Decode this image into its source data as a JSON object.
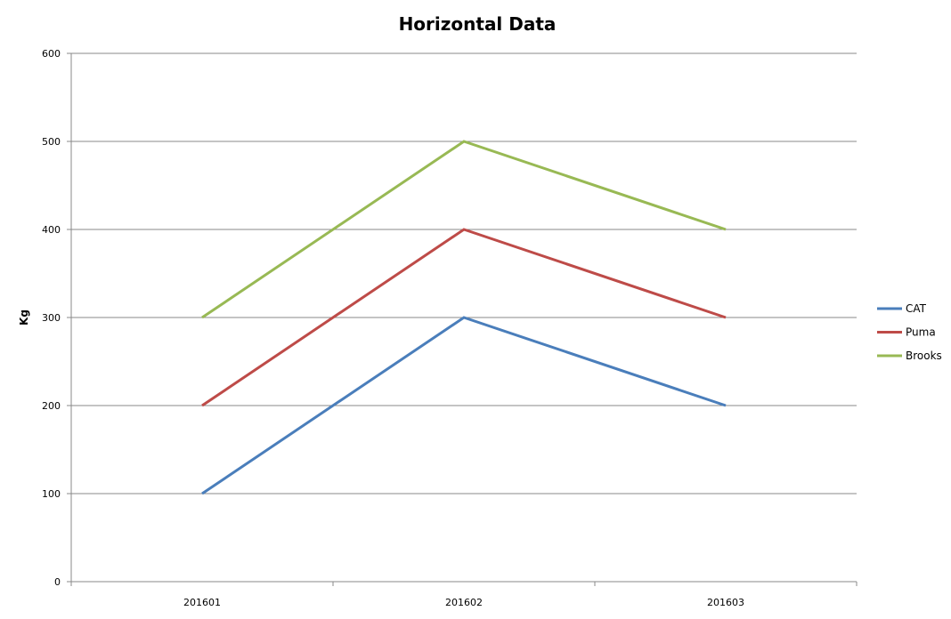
{
  "chart_data": {
    "type": "line",
    "title": "Horizontal Data",
    "xlabel": "",
    "ylabel": "Kg",
    "categories": [
      "201601",
      "201602",
      "201603"
    ],
    "ylim": [
      0,
      600
    ],
    "yticks": [
      0,
      100,
      200,
      300,
      400,
      500,
      600
    ],
    "grid": true,
    "legend_position": "right",
    "series": [
      {
        "name": "CAT",
        "values": [
          100,
          300,
          200
        ],
        "color": "#4a7ebb"
      },
      {
        "name": "Puma",
        "values": [
          200,
          400,
          300
        ],
        "color": "#be4b48"
      },
      {
        "name": "Brooks",
        "values": [
          300,
          500,
          400
        ],
        "color": "#98b954"
      }
    ]
  }
}
